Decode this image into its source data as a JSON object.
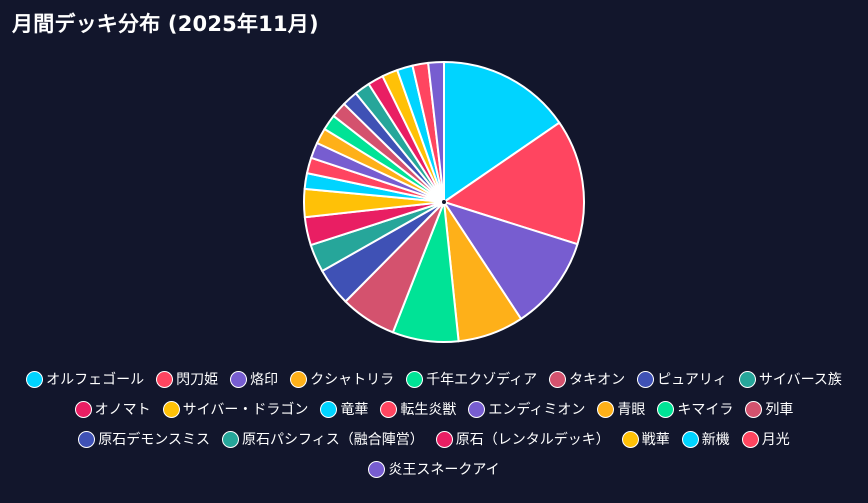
{
  "chart_data": {
    "type": "pie",
    "title": "月間デッキ分布 (2025年11月)",
    "legend_position": "bottom",
    "slices": [
      {
        "label": "オルフェゴール",
        "value": 16.2,
        "color": "#00d4ff"
      },
      {
        "label": "閃刀姫",
        "value": 15.2,
        "color": "#ff4560"
      },
      {
        "label": "烙印",
        "value": 11.4,
        "color": "#775dd0"
      },
      {
        "label": "クシャトリラ",
        "value": 8.0,
        "color": "#feb019"
      },
      {
        "label": "千年エクゾディア",
        "value": 8.0,
        "color": "#00e396"
      },
      {
        "label": "タキオン",
        "value": 6.8,
        "color": "#d4526e"
      },
      {
        "label": "ピュアリィ",
        "value": 4.6,
        "color": "#3f51b5"
      },
      {
        "label": "サイバース族",
        "value": 3.4,
        "color": "#26a69a"
      },
      {
        "label": "オノマト",
        "value": 3.4,
        "color": "#e91e63"
      },
      {
        "label": "サイバー・ドラゴン",
        "value": 3.4,
        "color": "#ffc107"
      },
      {
        "label": "竜華",
        "value": 1.9,
        "color": "#00d4ff"
      },
      {
        "label": "転生炎獣",
        "value": 1.9,
        "color": "#ff4560"
      },
      {
        "label": "エンディミオン",
        "value": 1.9,
        "color": "#775dd0"
      },
      {
        "label": "青眼",
        "value": 1.9,
        "color": "#feb019"
      },
      {
        "label": "キマイラ",
        "value": 1.9,
        "color": "#00e396"
      },
      {
        "label": "列車",
        "value": 1.9,
        "color": "#d4526e"
      },
      {
        "label": "原石デモンスミス",
        "value": 1.9,
        "color": "#3f51b5"
      },
      {
        "label": "原石パシフィス（融合陣営）",
        "value": 1.9,
        "color": "#26a69a"
      },
      {
        "label": "原石（レンタルデッキ）",
        "value": 1.9,
        "color": "#e91e63"
      },
      {
        "label": "戦華",
        "value": 1.9,
        "color": "#ffc107"
      },
      {
        "label": "新機",
        "value": 1.9,
        "color": "#00d4ff"
      },
      {
        "label": "月光",
        "value": 1.9,
        "color": "#ff4560"
      },
      {
        "label": "炎王スネークアイ",
        "value": 1.9,
        "color": "#775dd0"
      }
    ]
  }
}
